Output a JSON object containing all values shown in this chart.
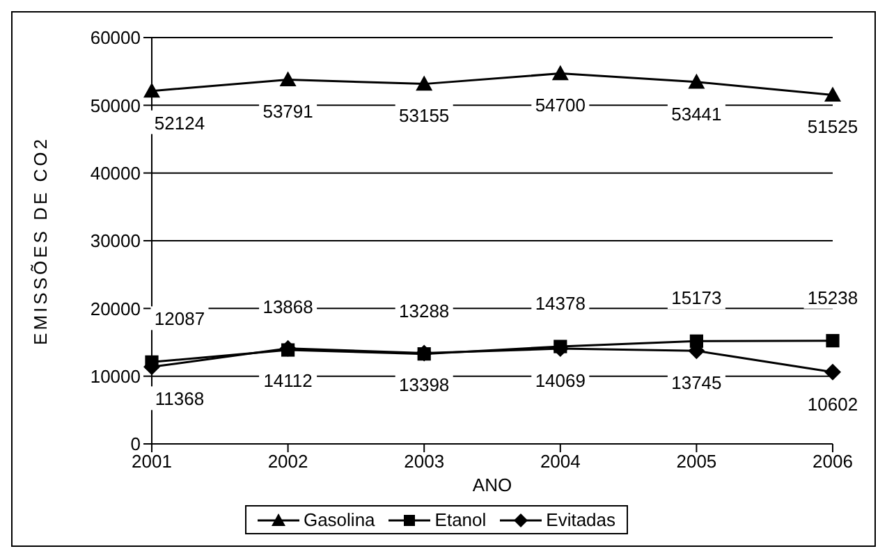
{
  "chart_data": {
    "type": "line",
    "xlabel": "ANO",
    "ylabel": "EMISSÕES DE CO2",
    "categories": [
      "2001",
      "2002",
      "2003",
      "2004",
      "2005",
      "2006"
    ],
    "series": [
      {
        "name": "Gasolina",
        "color": "#000000",
        "marker": "triangle",
        "values": [
          52124,
          53791,
          53155,
          54700,
          53441,
          51525
        ]
      },
      {
        "name": "Etanol",
        "color": "#000000",
        "marker": "square",
        "values": [
          12087,
          13868,
          13288,
          14378,
          15173,
          15238
        ]
      },
      {
        "name": "Evitadas",
        "color": "#000000",
        "marker": "diamond",
        "values": [
          11368,
          14112,
          13398,
          14069,
          13745,
          10602
        ]
      }
    ],
    "ylim": [
      0,
      60000
    ],
    "yticks": [
      0,
      10000,
      20000,
      30000,
      40000,
      50000,
      60000
    ],
    "grid": "y",
    "legend": "bottom",
    "data_labels": true,
    "line_style": "solid"
  }
}
